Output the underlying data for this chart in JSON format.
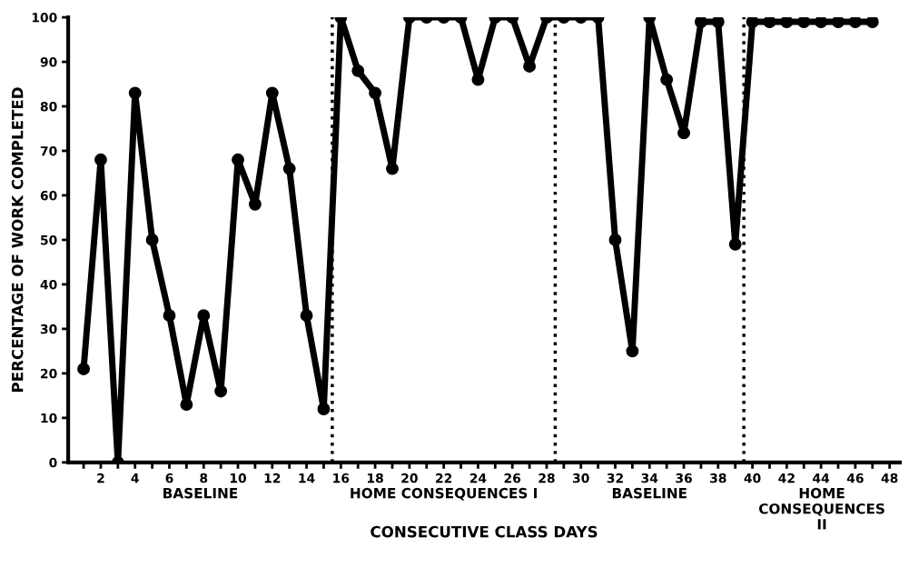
{
  "chart_data": {
    "type": "line",
    "xlabel": "CONSECUTIVE CLASS DAYS",
    "ylabel": "PERCENTAGE OF WORK COMPLETED",
    "x": [
      1,
      2,
      3,
      4,
      5,
      6,
      7,
      8,
      9,
      10,
      11,
      12,
      13,
      14,
      15,
      16,
      17,
      18,
      19,
      20,
      21,
      22,
      23,
      24,
      25,
      26,
      27,
      28,
      29,
      30,
      31,
      32,
      33,
      34,
      35,
      36,
      37,
      38,
      39,
      40,
      41,
      42,
      43,
      44,
      45,
      46,
      47
    ],
    "series": [
      {
        "color": "#000000",
        "values": [
          21,
          68,
          0,
          83,
          50,
          33,
          13,
          33,
          16,
          68,
          58,
          83,
          66,
          33,
          12,
          100,
          88,
          83,
          66,
          100,
          100,
          100,
          100,
          86,
          100,
          100,
          89,
          100,
          100,
          100,
          100,
          50,
          25,
          100,
          86,
          74,
          99,
          99,
          49,
          99,
          99,
          99,
          99,
          99,
          99,
          99,
          99
        ]
      }
    ],
    "xlim": [
      0.1,
      48.6
    ],
    "ylim": [
      0,
      100
    ],
    "xticks": [
      {
        "value": 1,
        "label": null
      },
      2,
      {
        "value": 3,
        "label": null
      },
      4,
      {
        "value": 5,
        "label": null
      },
      6,
      {
        "value": 7,
        "label": null
      },
      8,
      {
        "value": 9,
        "label": null
      },
      10,
      {
        "value": 11,
        "label": null
      },
      12,
      {
        "value": 13,
        "label": null
      },
      14,
      {
        "value": 15,
        "label": null
      },
      16,
      {
        "value": 17,
        "label": null
      },
      18,
      {
        "value": 19,
        "label": null
      },
      20,
      {
        "value": 21,
        "label": null
      },
      22,
      {
        "value": 23,
        "label": null
      },
      24,
      {
        "value": 25,
        "label": null
      },
      26,
      {
        "value": 27,
        "label": null
      },
      28,
      {
        "value": 29,
        "label": null
      },
      30,
      {
        "value": 31,
        "label": null
      },
      32,
      {
        "value": 33,
        "label": null
      },
      34,
      {
        "value": 35,
        "label": null
      },
      36,
      {
        "value": 37,
        "label": null
      },
      38,
      {
        "value": 39,
        "label": null
      },
      40,
      {
        "value": 41,
        "label": null
      },
      42,
      {
        "value": 43,
        "label": null
      },
      44,
      {
        "value": 45,
        "label": null
      },
      46,
      {
        "value": 47,
        "label": null
      },
      48
    ],
    "yticks": [
      0,
      10,
      20,
      30,
      40,
      50,
      60,
      70,
      80,
      90,
      100
    ],
    "marker": "circle",
    "line_style": "solid",
    "grid": false,
    "legend": false,
    "ref_lines": [
      {
        "axis": "x",
        "value": 15.5,
        "line_style": "dotted",
        "color": "#000000"
      },
      {
        "axis": "x",
        "value": 28.5,
        "line_style": "dotted",
        "color": "#000000"
      },
      {
        "axis": "x",
        "value": 39.5,
        "line_style": "dotted",
        "color": "#000000"
      }
    ],
    "annotations": [
      "BASELINE",
      "HOME CONSEQUENCES I",
      "BASELINE",
      "HOME\nCONSEQUENCES\nII"
    ]
  }
}
